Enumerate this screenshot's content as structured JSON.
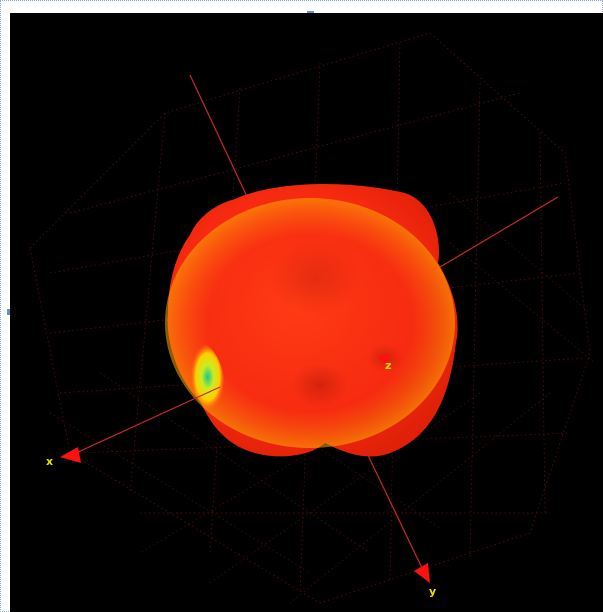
{
  "viewer": {
    "background_color": "#000000",
    "frame_border_color": "#8aa6c8",
    "handle_color": "#6b8fc0",
    "surface_colors": [
      "#ff2a10",
      "#f44a10",
      "#ffcc00",
      "#c8ee20",
      "#18c890"
    ]
  },
  "axes": {
    "line_color": "#c82828",
    "arrow_color": "#ff1010",
    "label_color": "#e8e000",
    "x_label": "x",
    "y_label": "y",
    "z_label": "z"
  }
}
